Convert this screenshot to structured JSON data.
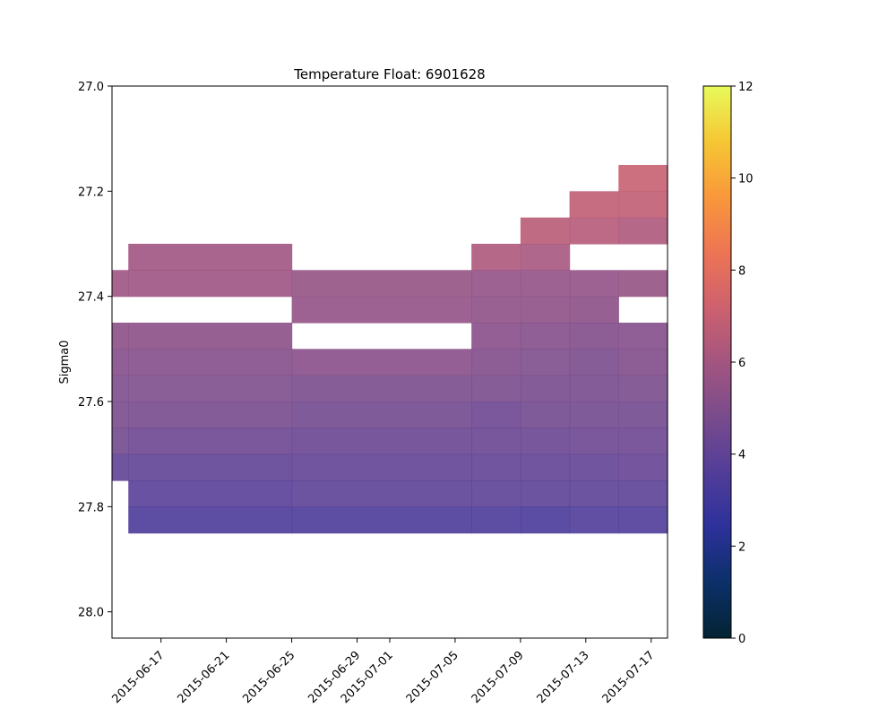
{
  "chart_data": {
    "type": "heatmap",
    "title": "Temperature Float: 6901628",
    "xlabel": "",
    "ylabel": "Sigma0",
    "x_axis": {
      "type": "date",
      "range": [
        "2015-06-14",
        "2015-07-18"
      ],
      "ticks": [
        "2015-06-17",
        "2015-06-21",
        "2015-06-25",
        "2015-06-29",
        "2015-07-01",
        "2015-07-05",
        "2015-07-09",
        "2015-07-13",
        "2015-07-17"
      ]
    },
    "y_axis": {
      "range": [
        27.0,
        28.05
      ],
      "inverted": true,
      "ticks": [
        27.0,
        27.2,
        27.4,
        27.6,
        27.8,
        28.0
      ],
      "tick_labels": [
        "27.0",
        "27.2",
        "27.4",
        "27.6",
        "27.8",
        "28.0"
      ]
    },
    "colorbar": {
      "min": 0,
      "max": 12,
      "ticks": [
        0,
        2,
        4,
        6,
        8,
        10,
        12
      ],
      "colormap": "thermal"
    },
    "x_bins": [
      "2015-06-14",
      "2015-06-15",
      "2015-06-25",
      "2015-07-06",
      "2015-07-09",
      "2015-07-12",
      "2015-07-15",
      "2015-07-18"
    ],
    "y_bins": [
      27.15,
      27.2,
      27.25,
      27.3,
      27.35,
      27.4,
      27.45,
      27.5,
      27.55,
      27.6,
      27.65,
      27.7,
      27.75,
      27.8,
      27.85
    ],
    "values": [
      [
        null,
        null,
        null,
        null,
        null,
        null,
        7.0
      ],
      [
        null,
        null,
        null,
        null,
        null,
        6.8,
        6.8
      ],
      [
        null,
        null,
        null,
        null,
        6.6,
        6.5,
        6.3
      ],
      [
        null,
        5.9,
        null,
        6.3,
        6.1,
        null,
        null
      ],
      [
        5.8,
        5.8,
        5.6,
        5.5,
        5.5,
        5.5,
        5.6
      ],
      [
        null,
        null,
        5.5,
        5.4,
        5.4,
        5.3,
        null
      ],
      [
        5.3,
        5.3,
        null,
        5.2,
        5.1,
        5.0,
        5.1
      ],
      [
        5.1,
        5.1,
        5.2,
        5.0,
        4.9,
        4.8,
        5.0
      ],
      [
        4.9,
        4.9,
        4.8,
        4.8,
        4.7,
        4.7,
        4.8
      ],
      [
        4.8,
        4.7,
        4.6,
        4.4,
        4.6,
        4.6,
        4.6
      ],
      [
        4.6,
        4.4,
        4.3,
        4.3,
        4.3,
        4.4,
        4.4
      ],
      [
        4.0,
        4.0,
        4.1,
        4.1,
        4.1,
        4.1,
        4.2
      ],
      [
        null,
        3.8,
        3.9,
        3.9,
        3.9,
        3.9,
        3.9
      ],
      [
        null,
        3.4,
        3.4,
        3.4,
        3.3,
        3.5,
        3.5
      ]
    ]
  }
}
